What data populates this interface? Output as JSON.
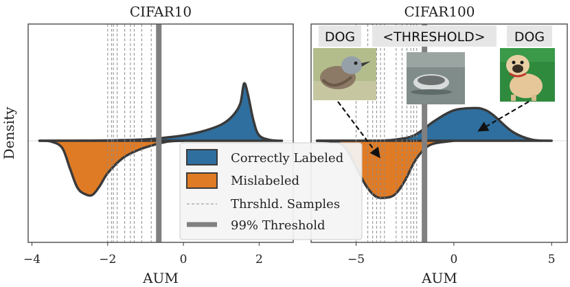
{
  "figure": {
    "ylabel": "Density"
  },
  "colors": {
    "correct": "#2f6f9f",
    "mislabeled": "#e07b25",
    "outline": "#3a3a3a",
    "threshold": "#808080",
    "sample_line": "#8a8a8a",
    "badge_bg": "#e6e6e6",
    "hline": "#dddddd",
    "frame": "#555555"
  },
  "legend": {
    "correct": "Correctly Labeled",
    "mislabeled": "Mislabeled",
    "samples": "Thrshld. Samples",
    "threshold": "99% Threshold"
  },
  "badges": {
    "dog_left": "DOG",
    "threshold": "<THRESHOLD>",
    "dog_right": "DOG"
  },
  "thumbnails": {
    "bird": "bird-thumbnail",
    "boat": "boat-thumbnail",
    "pug": "pug-thumbnail"
  },
  "chart_data": [
    {
      "type": "area",
      "title": "CIFAR10",
      "xlabel": "AUM",
      "ylabel": "Density",
      "xlim": [
        -4.1,
        2.9
      ],
      "xticks": [
        -4,
        -2,
        0,
        2
      ],
      "xtick_labels": [
        "−4",
        "−2",
        "0",
        "2"
      ],
      "threshold": -0.65,
      "sample_lines": [
        -2.0,
        -1.9,
        -1.85,
        -1.75,
        -1.55,
        -1.4,
        -1.3,
        -1.1,
        -0.85
      ],
      "series": [
        {
          "name": "Correctly Labeled",
          "side": "up",
          "x": [
            -3.8,
            -3.0,
            -2.0,
            -1.0,
            -0.5,
            0.0,
            0.5,
            1.0,
            1.3,
            1.5,
            1.6,
            1.7,
            1.85,
            2.0,
            2.3,
            2.6
          ],
          "density": [
            0.0,
            0.0,
            0.005,
            0.02,
            0.045,
            0.08,
            0.14,
            0.24,
            0.37,
            0.55,
            0.85,
            0.7,
            0.3,
            0.08,
            0.01,
            0.0
          ]
        },
        {
          "name": "Mislabeled",
          "side": "down",
          "x": [
            -3.8,
            -3.5,
            -3.2,
            -3.0,
            -2.8,
            -2.6,
            -2.4,
            -2.2,
            -2.0,
            -1.6,
            -1.2,
            -0.8,
            -0.4,
            0.0
          ],
          "density": [
            0.0,
            0.01,
            0.1,
            0.38,
            0.65,
            0.74,
            0.75,
            0.62,
            0.45,
            0.24,
            0.13,
            0.06,
            0.01,
            0.0
          ]
        }
      ]
    },
    {
      "type": "area",
      "title": "CIFAR100",
      "xlabel": "AUM",
      "xlim": [
        -7.3,
        5.8
      ],
      "xticks": [
        -5,
        0,
        5
      ],
      "xtick_labels": [
        "−5",
        "0",
        "5"
      ],
      "threshold": -1.5,
      "sample_lines": [
        -5.0,
        -4.4,
        -4.15,
        -3.95,
        -3.75,
        -3.55,
        -2.95,
        -2.65,
        -2.4,
        -2.2,
        -2.05,
        -1.9
      ],
      "series": [
        {
          "name": "Correctly Labeled",
          "side": "up",
          "x": [
            -7.0,
            -6.0,
            -5.0,
            -4.0,
            -3.0,
            -2.0,
            -1.0,
            0.0,
            1.0,
            1.5,
            2.0,
            3.0,
            4.0,
            5.0
          ],
          "density": [
            0.0,
            0.0,
            0.0,
            0.0,
            0.02,
            0.1,
            0.35,
            0.54,
            0.58,
            0.56,
            0.46,
            0.16,
            0.02,
            0.0
          ]
        },
        {
          "name": "Mislabeled",
          "side": "down",
          "x": [
            -7.0,
            -6.0,
            -5.5,
            -5.0,
            -4.5,
            -4.0,
            -3.5,
            -3.0,
            -2.5,
            -2.0,
            -1.5,
            -1.0,
            0.0
          ],
          "density": [
            0.0,
            0.02,
            0.12,
            0.38,
            0.65,
            0.81,
            0.83,
            0.78,
            0.58,
            0.3,
            0.12,
            0.04,
            0.0
          ]
        }
      ]
    }
  ]
}
